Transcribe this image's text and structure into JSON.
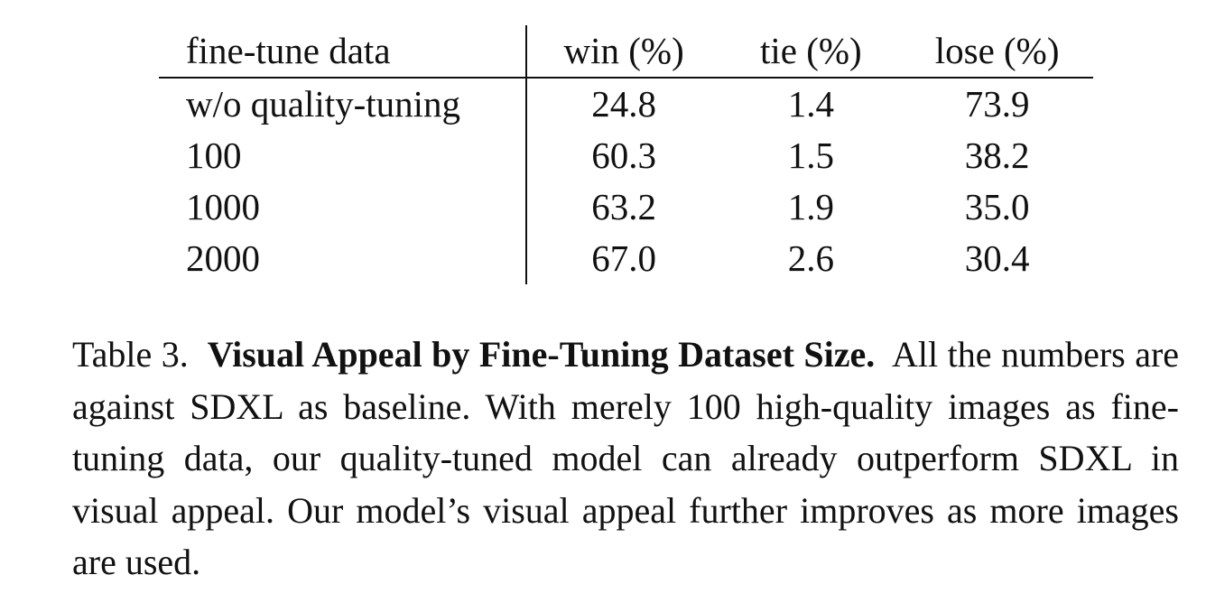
{
  "table": {
    "columns": [
      "fine-tune data",
      "win (%)",
      "tie (%)",
      "lose (%)"
    ],
    "rows": [
      {
        "label": "w/o quality-tuning",
        "win": "24.8",
        "tie": "1.4",
        "lose": "73.9"
      },
      {
        "label": "100",
        "win": "60.3",
        "tie": "1.5",
        "lose": "38.2"
      },
      {
        "label": "1000",
        "win": "63.2",
        "tie": "1.9",
        "lose": "35.0"
      },
      {
        "label": "2000",
        "win": "67.0",
        "tie": "2.6",
        "lose": "30.4"
      }
    ]
  },
  "caption": {
    "label": "Table 3.",
    "title": "Visual Appeal by Fine-Tuning Dataset Size.",
    "text": "All the numbers are against SDXL as baseline. With merely 100 high-quality images as fine-tuning data, our quality-tuned model can already outperform SDXL in visual appeal. Our model’s visual appeal further improves as more images are used."
  }
}
